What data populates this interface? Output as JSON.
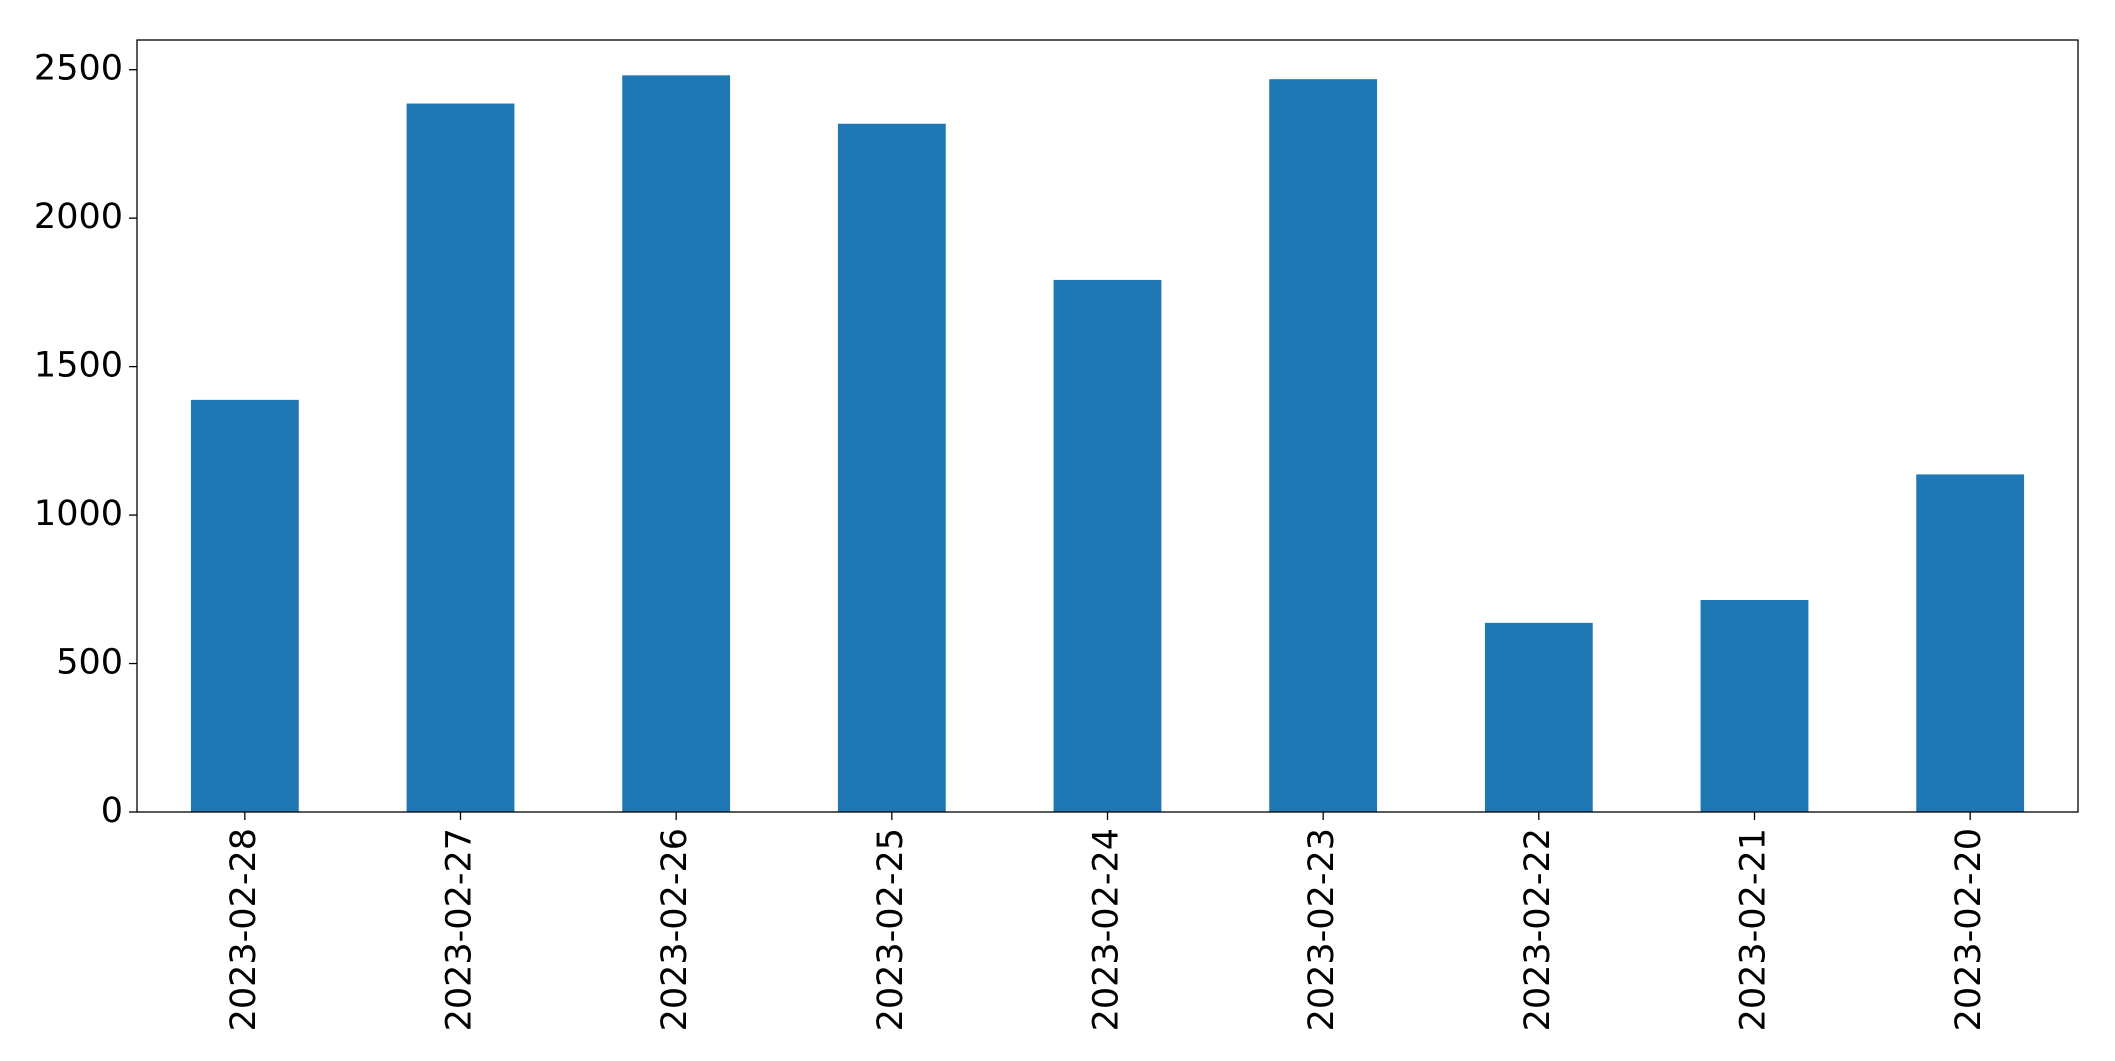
{
  "chart_data": {
    "type": "bar",
    "title": "",
    "xlabel": "",
    "ylabel": "",
    "categories": [
      "2023-02-28",
      "2023-02-27",
      "2023-02-26",
      "2023-02-25",
      "2023-02-24",
      "2023-02-23",
      "2023-02-22",
      "2023-02-21",
      "2023-02-20"
    ],
    "values": [
      1388,
      2386,
      2481,
      2318,
      1792,
      2468,
      637,
      714,
      1137
    ],
    "ylim": [
      0,
      2600
    ],
    "yticks": [
      0,
      500,
      1000,
      1500,
      2000,
      2500
    ],
    "xtick_rotation": "vertical",
    "grid": false,
    "legend": "none",
    "bar_color": "#1f77b4"
  }
}
